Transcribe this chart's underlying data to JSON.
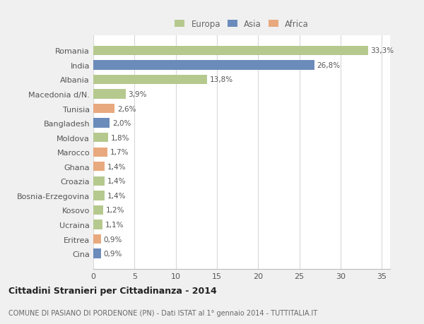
{
  "countries": [
    "Cina",
    "Eritrea",
    "Ucraina",
    "Kosovo",
    "Bosnia-Erzegovina",
    "Croazia",
    "Ghana",
    "Marocco",
    "Moldova",
    "Bangladesh",
    "Tunisia",
    "Macedonia d/N.",
    "Albania",
    "India",
    "Romania"
  ],
  "values": [
    0.9,
    0.9,
    1.1,
    1.2,
    1.4,
    1.4,
    1.4,
    1.7,
    1.8,
    2.0,
    2.6,
    3.9,
    13.8,
    26.8,
    33.3
  ],
  "labels": [
    "0,9%",
    "0,9%",
    "1,1%",
    "1,2%",
    "1,4%",
    "1,4%",
    "1,4%",
    "1,7%",
    "1,8%",
    "2,0%",
    "2,6%",
    "3,9%",
    "13,8%",
    "26,8%",
    "33,3%"
  ],
  "colors": [
    "#6b8cba",
    "#e8a97e",
    "#b5c98e",
    "#b5c98e",
    "#b5c98e",
    "#b5c98e",
    "#e8a97e",
    "#e8a97e",
    "#b5c98e",
    "#6b8cba",
    "#e8a97e",
    "#b5c98e",
    "#b5c98e",
    "#6b8cba",
    "#b5c98e"
  ],
  "continent": [
    "Asia",
    "Africa",
    "Europa",
    "Europa",
    "Europa",
    "Europa",
    "Africa",
    "Africa",
    "Europa",
    "Asia",
    "Africa",
    "Europa",
    "Europa",
    "Asia",
    "Europa"
  ],
  "legend_labels": [
    "Europa",
    "Asia",
    "Africa"
  ],
  "legend_colors": [
    "#b5c98e",
    "#6b8cba",
    "#e8a97e"
  ],
  "title": "Cittadini Stranieri per Cittadinanza - 2014",
  "subtitle": "COMUNE DI PASIANO DI PORDENONE (PN) - Dati ISTAT al 1° gennaio 2014 - TUTTITALIA.IT",
  "xlim": [
    0,
    36
  ],
  "xticks": [
    0,
    5,
    10,
    15,
    20,
    25,
    30,
    35
  ],
  "background_color": "#f0f0f0",
  "plot_background": "#ffffff",
  "grid_color": "#d8d8d8",
  "bar_height": 0.65
}
